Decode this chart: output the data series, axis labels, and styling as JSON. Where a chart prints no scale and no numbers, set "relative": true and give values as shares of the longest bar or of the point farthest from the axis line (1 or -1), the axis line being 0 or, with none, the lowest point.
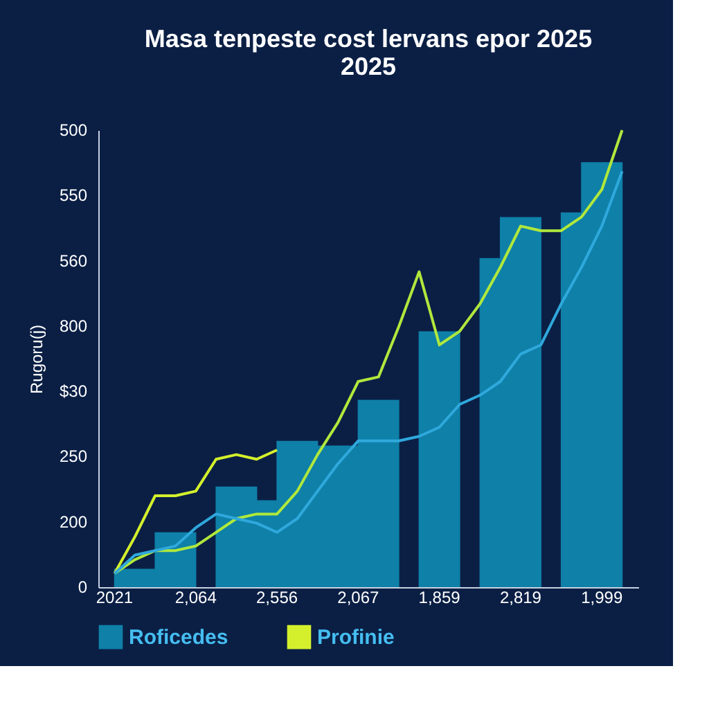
{
  "chart_data": {
    "type": "bar",
    "title": "Masa tenpeste cost lervans epor 2025\n2025",
    "ylabel": "Rugoru(j)",
    "relative": true,
    "categories": [
      "2021",
      null,
      null,
      null,
      "2,064",
      null,
      null,
      null,
      "2,556",
      null,
      null,
      null,
      "2,067",
      null,
      null,
      null,
      "1,859",
      null,
      null,
      null,
      "2,819",
      null,
      null,
      null,
      "1,999",
      null
    ],
    "annotations": [
      "0",
      "200",
      "250",
      "$30",
      "800",
      "560",
      "550",
      "500"
    ],
    "legend": "bottom",
    "series": [
      {
        "name": "Roficedes",
        "color": "#0f80a8",
        "values": [
          null,
          0.04,
          null,
          0.12,
          null,
          null,
          0.22,
          null,
          0.19,
          0.32,
          null,
          0.31,
          null,
          0.41,
          null,
          null,
          0.56,
          null,
          null,
          0.72,
          0.81,
          null,
          null,
          0.82,
          0.93,
          null
        ]
      },
      {
        "name": "Profinie",
        "type": "line",
        "color": "#d4f02c",
        "values": [
          0.03,
          0.11,
          0.2,
          0.2,
          0.21,
          0.28,
          0.29,
          0.28,
          0.3,
          null,
          null,
          null,
          null,
          null,
          null,
          null,
          null,
          null,
          null,
          null,
          null,
          null,
          null,
          null,
          null,
          null
        ]
      },
      {
        "type": "line",
        "color": "#b0e83c",
        "values": [
          0.03,
          0.06,
          0.08,
          0.08,
          0.09,
          0.12,
          0.15,
          0.16,
          0.16,
          0.21,
          0.29,
          0.36,
          0.45,
          0.46,
          0.57,
          0.69,
          0.53,
          0.56,
          0.62,
          0.7,
          0.79,
          0.78,
          0.78,
          0.81,
          0.87,
          1.0
        ]
      },
      {
        "type": "line",
        "color": "#2fa8dc",
        "values": [
          0.03,
          0.07,
          0.08,
          0.09,
          0.13,
          0.16,
          0.15,
          0.14,
          0.12,
          0.15,
          0.21,
          0.27,
          0.32,
          0.32,
          0.32,
          0.33,
          0.35,
          0.4,
          0.42,
          0.45,
          0.51,
          0.53,
          0.62,
          0.7,
          0.79,
          0.91
        ]
      }
    ]
  }
}
